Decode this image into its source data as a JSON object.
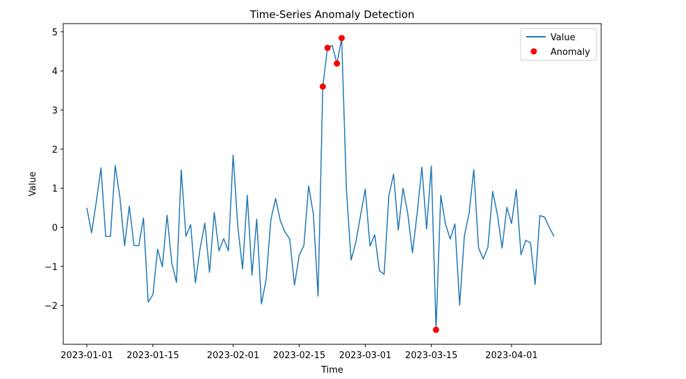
{
  "chart_data": {
    "type": "line",
    "title": "Time-Series Anomaly Detection",
    "xlabel": "Time",
    "ylabel": "Value",
    "x_start": "2023-01-01",
    "x_tick_labels": [
      "2023-01-01",
      "2023-01-15",
      "2023-02-01",
      "2023-02-15",
      "2023-03-01",
      "2023-03-15",
      "2023-04-01"
    ],
    "x_tick_dates": [
      "2023-01-01",
      "2023-01-15",
      "2023-02-01",
      "2023-02-15",
      "2023-03-01",
      "2023-03-15",
      "2023-04-01"
    ],
    "y_ticks": [
      -2,
      -1,
      0,
      1,
      2,
      3,
      4,
      5
    ],
    "y_tick_labels": [
      "−2",
      "−1",
      "0",
      "1",
      "2",
      "3",
      "4",
      "5"
    ],
    "xlim": [
      "2022-12-27",
      "2023-04-20"
    ],
    "ylim": [
      -2.99,
      5.21
    ],
    "grid": false,
    "legend_position": "top-right",
    "colors": {
      "line": "#1f77b4",
      "anomaly": "#ff0000",
      "text": "#000000"
    },
    "series": [
      {
        "name": "Value",
        "kind": "line",
        "values": [
          0.5,
          -0.14,
          0.65,
          1.52,
          -0.23,
          -0.23,
          1.58,
          0.77,
          -0.47,
          0.54,
          -0.46,
          -0.47,
          0.24,
          -1.91,
          -1.72,
          -0.56,
          -1.01,
          0.31,
          -0.91,
          -1.41,
          1.47,
          -0.23,
          0.07,
          -1.42,
          -0.54,
          0.11,
          -1.15,
          0.38,
          -0.6,
          -0.29,
          -0.6,
          1.85,
          0.01,
          -1.06,
          0.82,
          -1.22,
          0.21,
          -1.96,
          -1.33,
          0.2,
          0.74,
          0.17,
          -0.12,
          -0.3,
          -1.48,
          -0.72,
          -0.46,
          1.06,
          0.34,
          -1.76,
          3.6,
          4.59,
          4.65,
          4.19,
          4.84,
          0.98,
          -0.84,
          -0.38,
          0.3,
          0.98,
          -0.48,
          -0.19,
          -1.11,
          -1.2,
          0.81,
          1.36,
          -0.07,
          1.0,
          0.36,
          -0.65,
          0.36,
          1.54,
          -0.04,
          1.57,
          -2.62,
          0.82,
          0.09,
          -0.3,
          0.09,
          -1.99,
          -0.22,
          0.36,
          1.48,
          -0.52,
          -0.81,
          -0.5,
          0.92,
          0.33,
          -0.53,
          0.51,
          0.1,
          0.97,
          -0.7,
          -0.33,
          -0.39,
          -1.46,
          0.3,
          0.26,
          -0.0,
          -0.23
        ]
      },
      {
        "name": "Anomaly",
        "kind": "scatter",
        "points": [
          {
            "x": "2023-02-20",
            "y": 3.6
          },
          {
            "x": "2023-02-21",
            "y": 4.59
          },
          {
            "x": "2023-02-23",
            "y": 4.19
          },
          {
            "x": "2023-02-24",
            "y": 4.84
          },
          {
            "x": "2023-03-16",
            "y": -2.62
          }
        ]
      }
    ]
  }
}
